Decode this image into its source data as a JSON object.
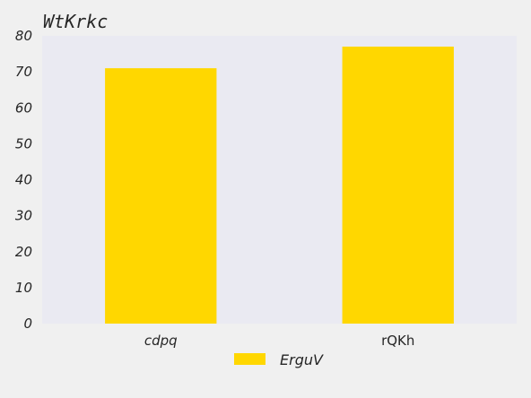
{
  "chart_data": {
    "type": "bar",
    "title": "WtKrkc",
    "xlabel": "",
    "ylabel": "",
    "categories": [
      "cdpq",
      "rQKh"
    ],
    "category_styles": [
      "italic",
      "normal"
    ],
    "series": [
      {
        "name": "ErguV",
        "values": [
          71,
          77
        ],
        "color": "#ffd700"
      }
    ],
    "ylim": [
      0,
      80
    ],
    "yticks": [
      0,
      10,
      20,
      30,
      40,
      50,
      60,
      70,
      80
    ],
    "grid": false,
    "legend_position": "bottom-center",
    "plot_background": "#eaeaf2"
  }
}
